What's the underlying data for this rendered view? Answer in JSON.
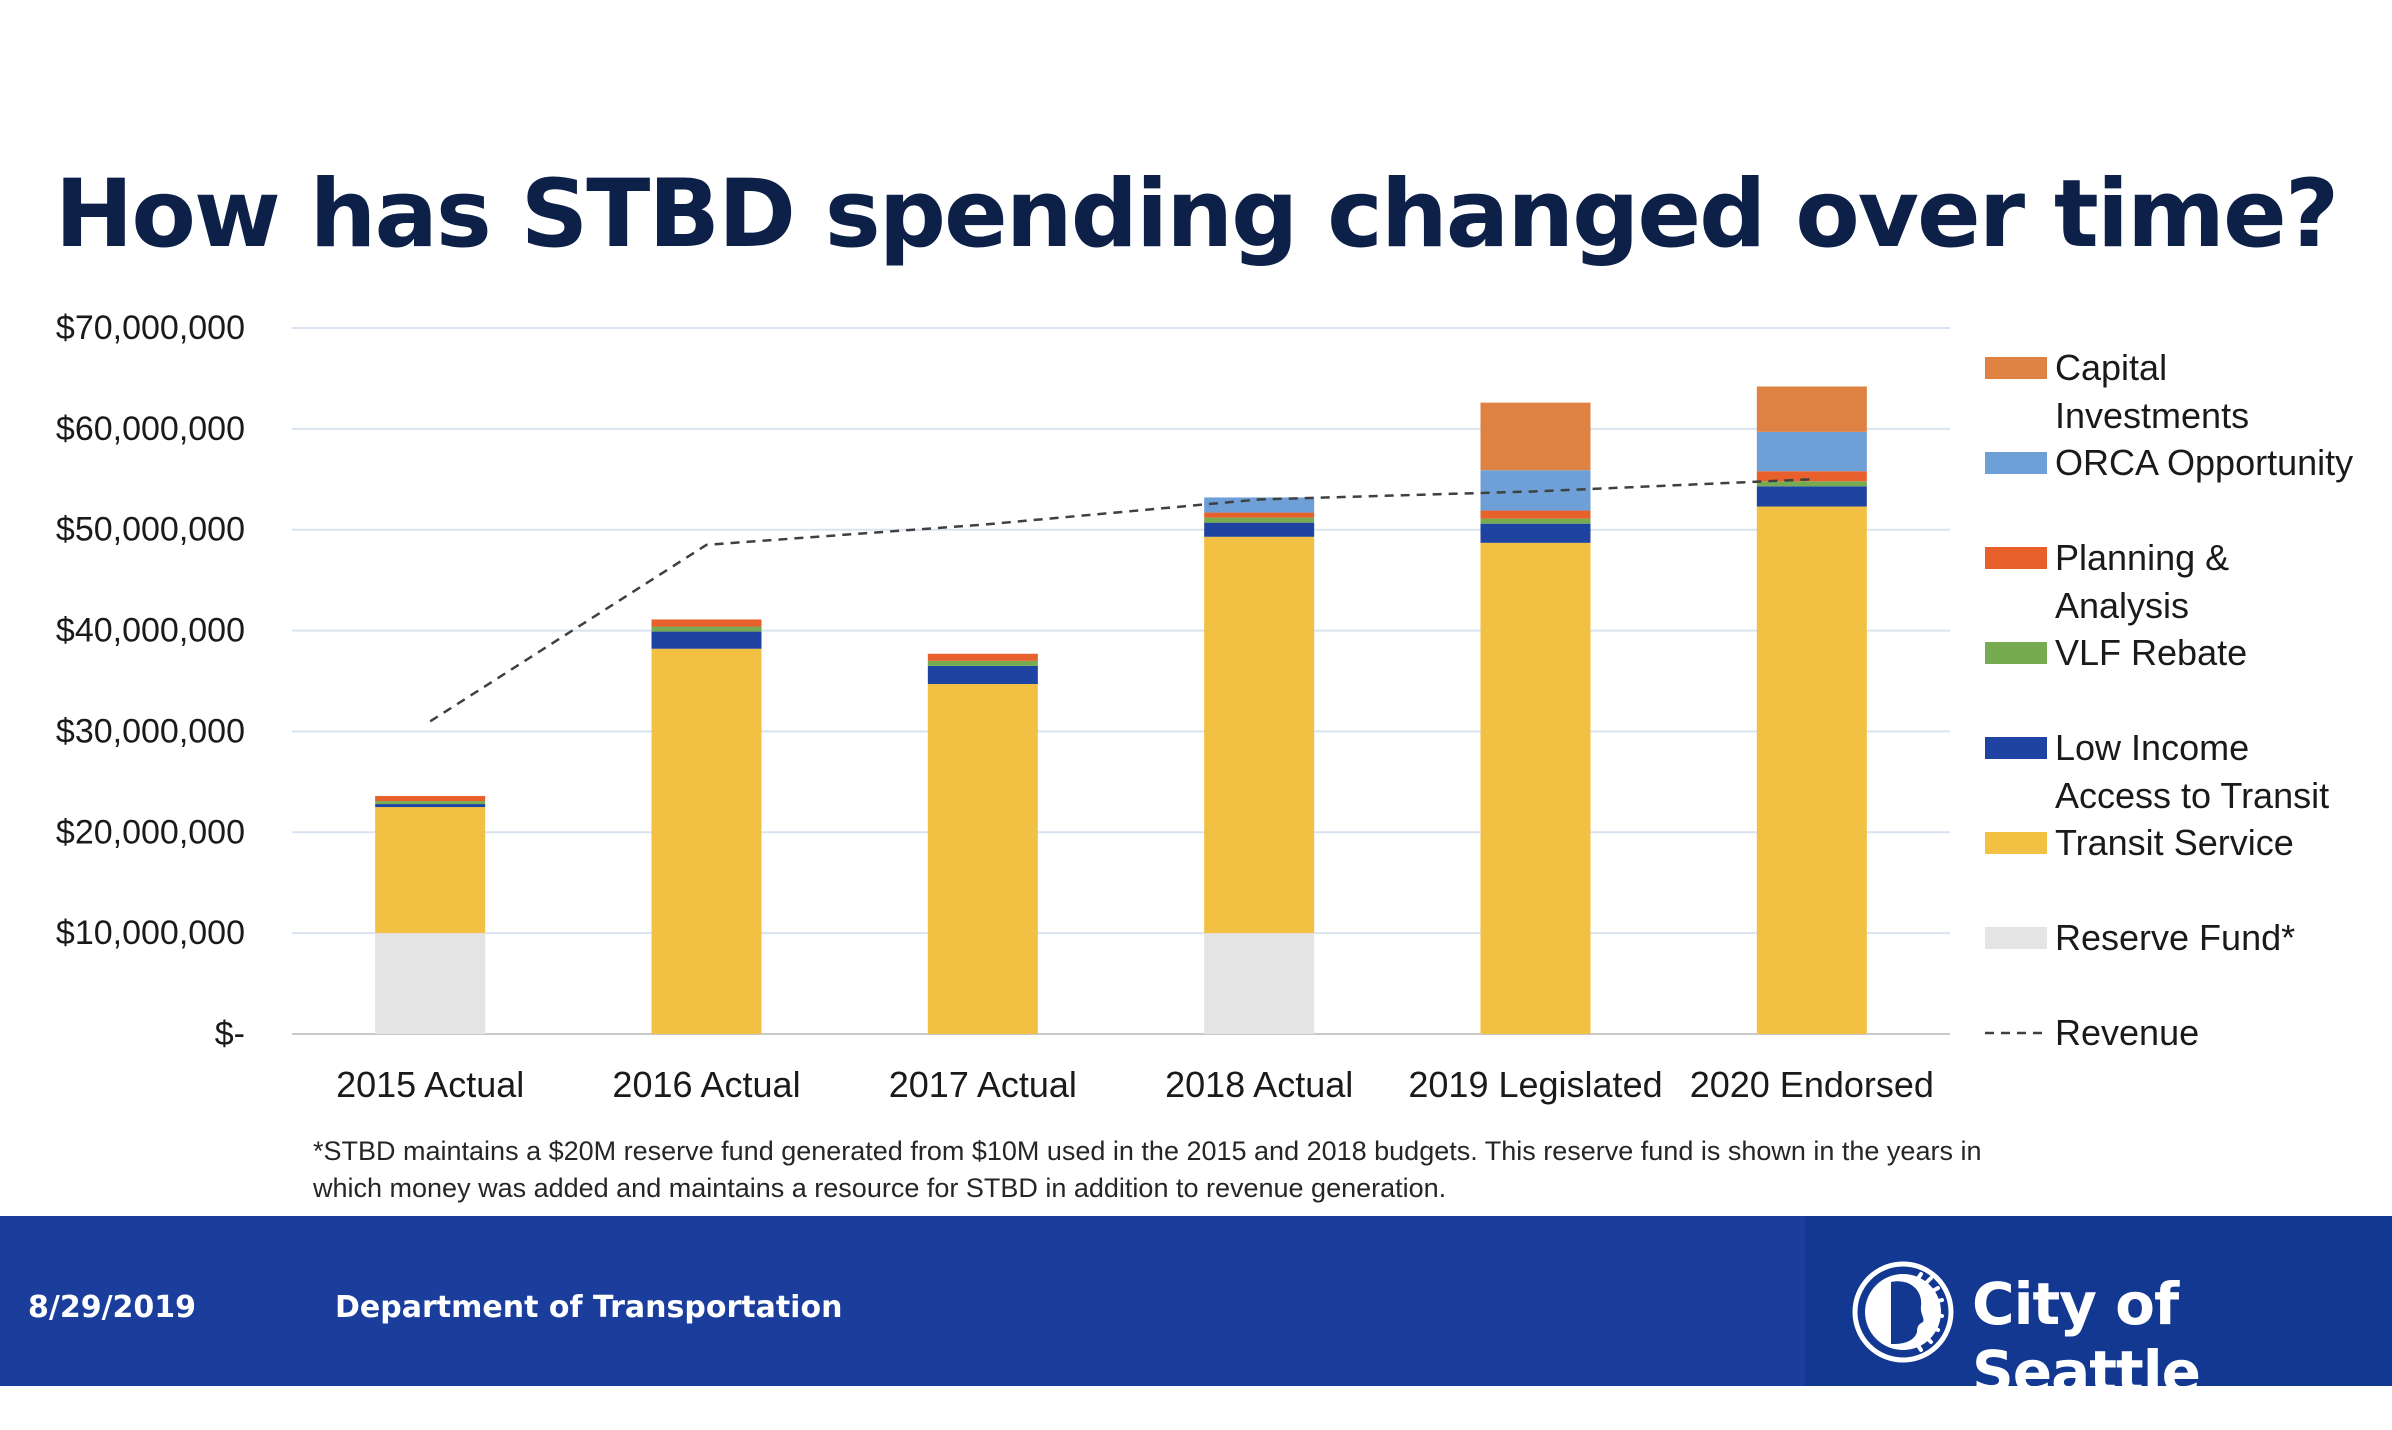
{
  "slide": {
    "title": "How has STBD spending changed over time?",
    "footnote": "*STBD maintains a $20M reserve fund generated from $10M used in the 2015 and 2018 budgets.  This reserve fund is shown in the years in which money was added and maintains a resource for STBD in addition to revenue generation."
  },
  "footer": {
    "date": "8/29/2019",
    "department": "Department of Transportation",
    "logo_text": "City of Seattle",
    "background_color": "#1b3e9c",
    "logo_panel_color": "#123892",
    "logo_icon": "city-seal-icon"
  },
  "chart_data": {
    "type": "bar",
    "stacked": true,
    "title": "",
    "xlabel": "",
    "ylabel": "",
    "categories": [
      "2015 Actual",
      "2016 Actual",
      "2017 Actual",
      "2018 Actual",
      "2019 Legislated",
      "2020 Endorsed"
    ],
    "ylim": [
      0,
      70000000
    ],
    "yticks": [
      0,
      10000000,
      20000000,
      30000000,
      40000000,
      50000000,
      60000000,
      70000000
    ],
    "ytick_labels": [
      "$-",
      "$10,000,000",
      "$20,000,000",
      "$30,000,000",
      "$40,000,000",
      "$50,000,000",
      "$60,000,000",
      "$70,000,000"
    ],
    "grid": true,
    "legend_position": "right",
    "series": [
      {
        "name": "Reserve Fund*",
        "color": "#e4e4e4",
        "values": [
          10000000,
          0,
          0,
          10000000,
          0,
          0
        ]
      },
      {
        "name": "Transit Service",
        "color": "#f2c144",
        "values": [
          12500000,
          38200000,
          34700000,
          39300000,
          48700000,
          52300000
        ]
      },
      {
        "name": "Low Income Access to Transit",
        "color": "#1f43a0",
        "values": [
          300000,
          1700000,
          1800000,
          1400000,
          1900000,
          2000000
        ]
      },
      {
        "name": "VLF Rebate",
        "color": "#77ab52",
        "values": [
          300000,
          500000,
          500000,
          500000,
          500000,
          500000
        ]
      },
      {
        "name": "Planning & Analysis",
        "color": "#e8602b",
        "values": [
          500000,
          700000,
          700000,
          500000,
          800000,
          1000000
        ]
      },
      {
        "name": "ORCA Opportunity",
        "color": "#6f9fd7",
        "values": [
          0,
          0,
          0,
          1500000,
          4000000,
          3900000
        ]
      },
      {
        "name": "Capital Investments",
        "color": "#dd8243",
        "values": [
          0,
          0,
          0,
          0,
          6700000,
          4500000
        ]
      }
    ],
    "revenue_line": {
      "name": "Revenue",
      "color": "#404040",
      "style": "dashed",
      "values": [
        31000000,
        48500000,
        50500000,
        53000000,
        53800000,
        55000000
      ]
    },
    "legend_order": [
      "Capital Investments",
      "ORCA Opportunity",
      "Planning & Analysis",
      "VLF Rebate",
      "Low Income Access to Transit",
      "Transit Service",
      "Reserve Fund*",
      "Revenue"
    ],
    "legend_lines": {
      "Capital Investments": [
        "Capital",
        "Investments"
      ],
      "ORCA Opportunity": [
        "ORCA Opportunity"
      ],
      "Planning & Analysis": [
        "Planning &",
        "Analysis"
      ],
      "VLF Rebate": [
        "VLF Rebate"
      ],
      "Low Income Access to Transit": [
        "Low Income",
        "Access to Transit"
      ],
      "Transit Service": [
        "Transit Service"
      ],
      "Reserve Fund*": [
        "Reserve Fund*"
      ],
      "Revenue": [
        "Revenue"
      ]
    }
  }
}
